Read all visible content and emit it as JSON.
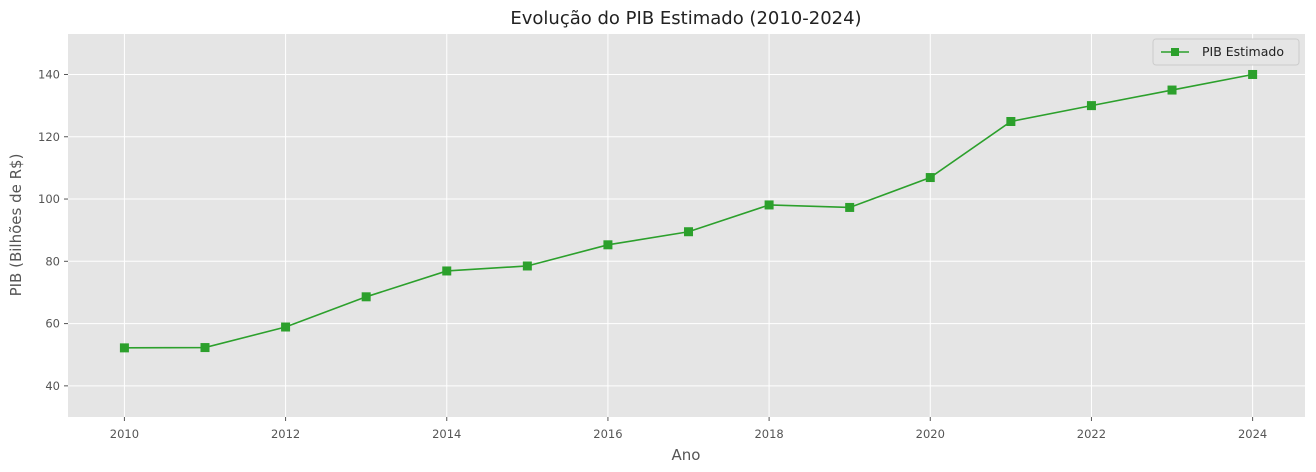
{
  "chart_data": {
    "type": "line",
    "title": "Evolução do PIB Estimado (2010-2024)",
    "xlabel": "Ano",
    "ylabel": "PIB (Bilhões de R$)",
    "xlim": [
      2009.3,
      2024.65
    ],
    "ylim": [
      30,
      153
    ],
    "xticks": [
      2010,
      2012,
      2014,
      2016,
      2018,
      2020,
      2022,
      2024
    ],
    "yticks": [
      40,
      60,
      80,
      100,
      120,
      140
    ],
    "grid": true,
    "legend_position": "top-right",
    "x": [
      2010,
      2011,
      2012,
      2013,
      2014,
      2015,
      2016,
      2017,
      2018,
      2019,
      2020,
      2021,
      2022,
      2023,
      2024
    ],
    "series": [
      {
        "name": "PIB Estimado",
        "color": "#2ca02c",
        "marker": "square",
        "values": [
          52.2,
          52.3,
          58.9,
          68.6,
          76.9,
          78.5,
          85.3,
          89.5,
          98.1,
          97.3,
          106.9,
          124.9,
          130.0,
          135.0,
          140.0
        ]
      }
    ],
    "background_color": "#e5e5e5",
    "grid_color": "#ffffff"
  }
}
